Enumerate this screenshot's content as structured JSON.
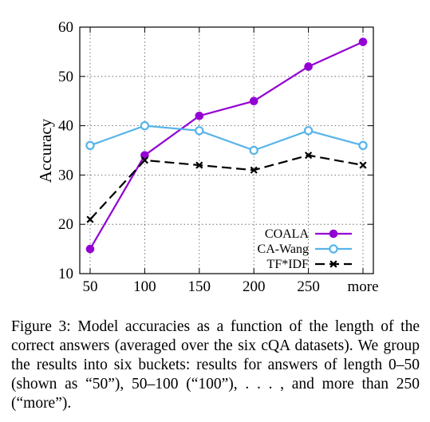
{
  "chart_data": {
    "type": "line",
    "categories": [
      "50",
      "100",
      "150",
      "200",
      "250",
      "more"
    ],
    "ylabel": "Accuracy",
    "xlabel": "",
    "ylim": [
      10,
      60
    ],
    "yticks": [
      "10",
      "20",
      "30",
      "40",
      "50",
      "60"
    ],
    "grid": true,
    "legend_position": "bottom-right",
    "series": [
      {
        "name": "COALA",
        "values": [
          15,
          34,
          42,
          45,
          52,
          57
        ],
        "color": "#9400D3",
        "marker": "filled-circle",
        "dash": "solid"
      },
      {
        "name": "CA-Wang",
        "values": [
          36,
          40,
          39,
          35,
          39,
          36
        ],
        "color": "#56B4E9",
        "marker": "open-circle",
        "dash": "solid"
      },
      {
        "name": "TF*IDF",
        "values": [
          21,
          33,
          32,
          31,
          34,
          32
        ],
        "color": "#000000",
        "marker": "x",
        "dash": "dashed"
      }
    ]
  },
  "caption": "Figure 3: Model accuracies as a function of the length of the correct answers (averaged over the six cQA datasets). We group the results into six buckets: results for answers of length 0–50 (shown as “50”), 50–100 (“100”), . . . , and more than 250 (“more”)."
}
